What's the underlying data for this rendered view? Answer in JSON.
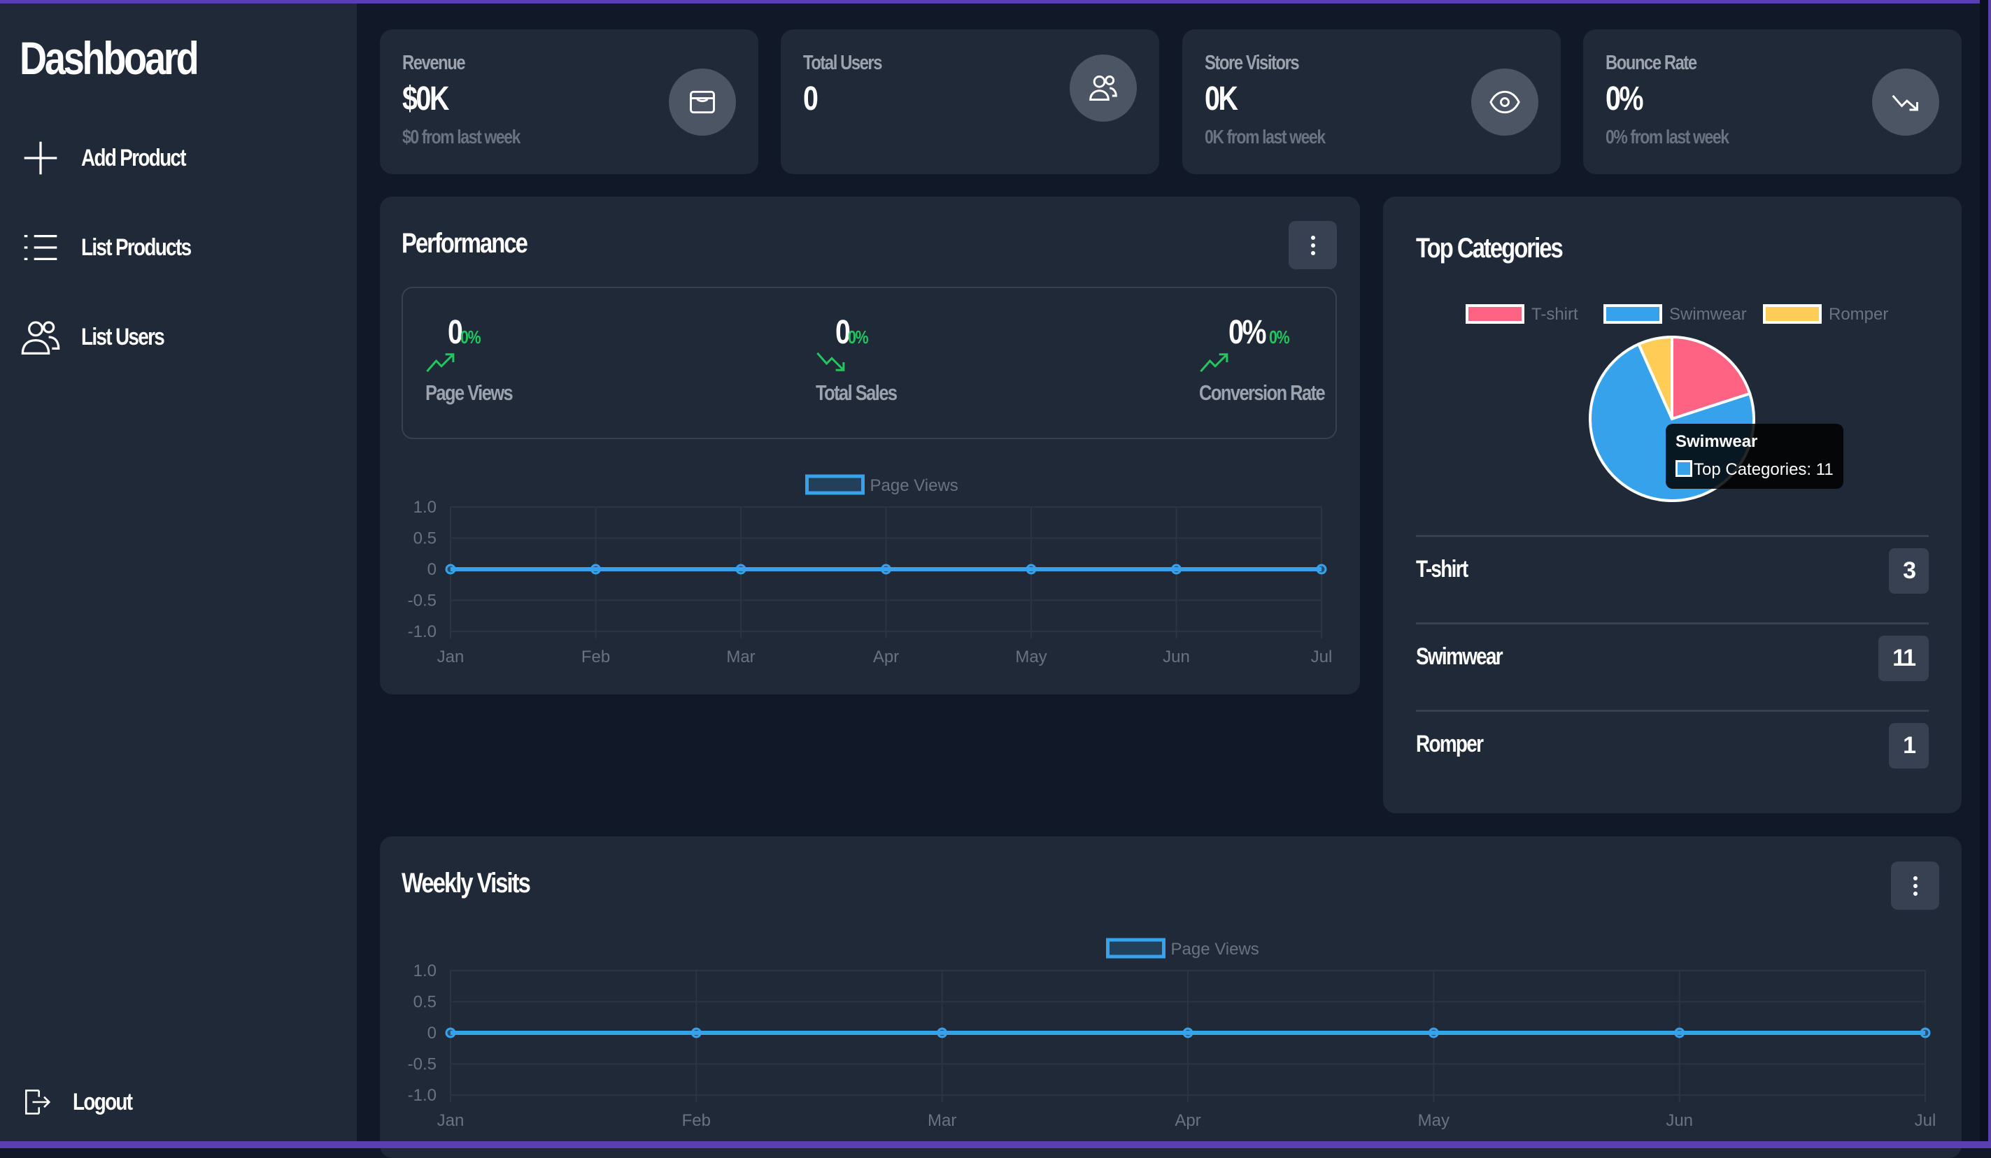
{
  "sidebar": {
    "title": "Dashboard",
    "items": [
      {
        "label": "Add Product",
        "icon": "plus-icon"
      },
      {
        "label": "List Products",
        "icon": "list-icon"
      },
      {
        "label": "List Users",
        "icon": "users-icon"
      }
    ],
    "logout": {
      "label": "Logout",
      "icon": "logout-icon"
    }
  },
  "stats": [
    {
      "label": "Revenue",
      "value": "$0K",
      "sub": "$0 from last week",
      "icon": "wallet-icon"
    },
    {
      "label": "Total Users",
      "value": "0",
      "sub": "",
      "icon": "users-icon"
    },
    {
      "label": "Store Visitors",
      "value": "0K",
      "sub": "0K from last week",
      "icon": "eye-icon"
    },
    {
      "label": "Bounce Rate",
      "value": "0%",
      "sub": "0% from last week",
      "icon": "trend-down-icon"
    }
  ],
  "performance": {
    "title": "Performance",
    "kpis": [
      {
        "value": "0",
        "change": "0%",
        "label": "Page Views",
        "trend": "up"
      },
      {
        "value": "0",
        "change": "0%",
        "label": "Total Sales",
        "trend": "down"
      },
      {
        "value": "0%",
        "change": "0%",
        "label": "Conversion Rate",
        "trend": "up"
      }
    ]
  },
  "top_categories": {
    "title": "Top Categories",
    "tooltip": {
      "title": "Swimwear",
      "body": "Top Categories: 11"
    },
    "rows": [
      {
        "label": "T-shirt",
        "count": "3"
      },
      {
        "label": "Swimwear",
        "count": "11"
      },
      {
        "label": "Romper",
        "count": "1"
      }
    ]
  },
  "weekly": {
    "title": "Weekly Visits"
  },
  "colors": {
    "accent": "#36a2eb",
    "tshirt": "#ff6384",
    "swimwear": "#36a2eb",
    "romper": "#ffcd56",
    "positive": "#22c55e",
    "card": "#1f2937",
    "bg": "#111827"
  },
  "chart_data": [
    {
      "type": "line",
      "legend": "Page Views",
      "categories": [
        "Jan",
        "Feb",
        "Mar",
        "Apr",
        "May",
        "Jun",
        "Jul"
      ],
      "series": [
        {
          "name": "Page Views",
          "values": [
            0,
            0,
            0,
            0,
            0,
            0,
            0
          ]
        }
      ],
      "yticks": [
        "1.0",
        "0.5",
        "0",
        "-0.5",
        "-1.0"
      ],
      "ylim": [
        -1,
        1
      ],
      "grid": true,
      "legend_position": "top"
    },
    {
      "type": "pie",
      "title": "Top Categories",
      "categories": [
        "T-shirt",
        "Swimwear",
        "Romper"
      ],
      "values": [
        3,
        11,
        1
      ],
      "colors": [
        "#ff6384",
        "#36a2eb",
        "#ffcd56"
      ],
      "legend_position": "top"
    },
    {
      "type": "line",
      "legend": "Page Views",
      "categories": [
        "Jan",
        "Feb",
        "Mar",
        "Apr",
        "May",
        "Jun",
        "Jul"
      ],
      "series": [
        {
          "name": "Page Views",
          "values": [
            0,
            0,
            0,
            0,
            0,
            0,
            0
          ]
        }
      ],
      "yticks": [
        "1.0",
        "0.5",
        "0",
        "-0.5",
        "-1.0"
      ],
      "ylim": [
        -1,
        1
      ],
      "grid": true,
      "legend_position": "top"
    }
  ]
}
